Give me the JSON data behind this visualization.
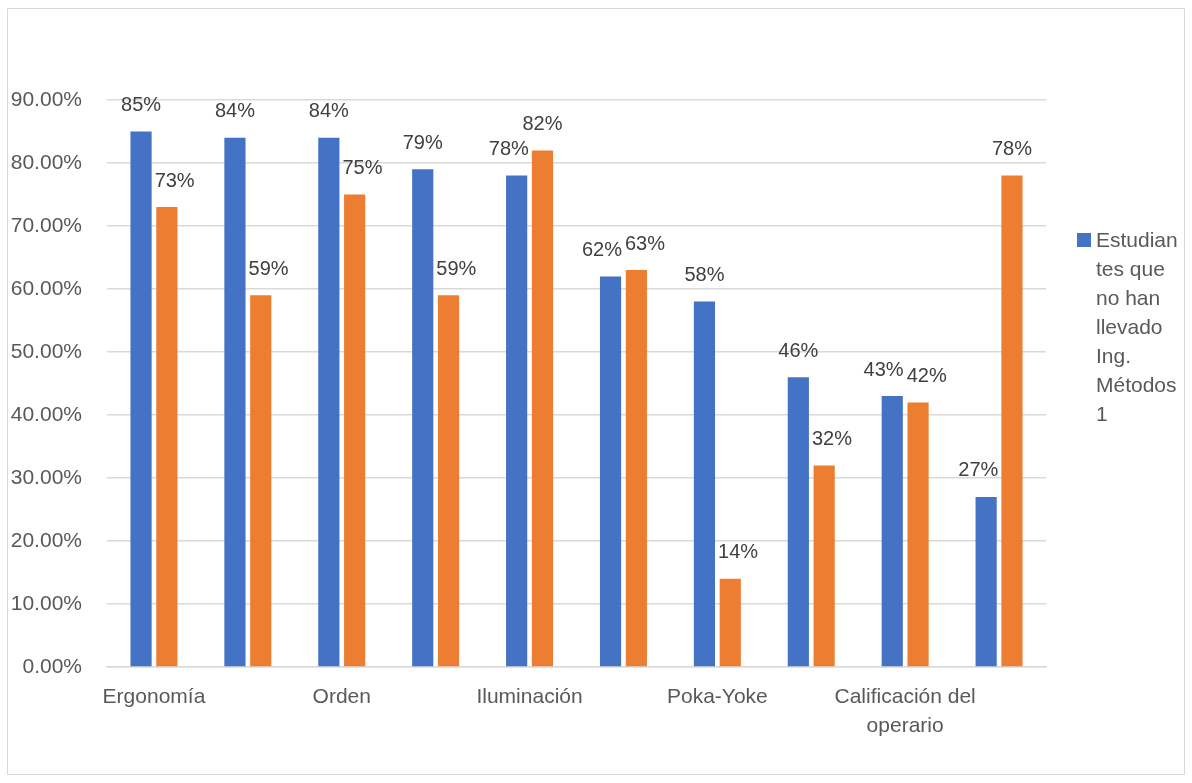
{
  "chart_data": {
    "type": "bar",
    "categories": [
      "Ergonomía",
      null,
      "Orden",
      null,
      "Iluminación",
      null,
      "Poka-Yoke",
      null,
      "Calificación del operario",
      null
    ],
    "series": [
      {
        "name": "Estudiantes que no han llevado Ing. Métodos 1",
        "color": "#4472c4",
        "values": [
          85,
          84,
          84,
          79,
          78,
          62,
          58,
          46,
          43,
          27
        ],
        "value_labels": [
          "85%",
          "84%",
          "84%",
          "79%",
          "78%",
          "62%",
          "58%",
          "46%",
          "43%",
          "27%"
        ]
      },
      {
        "color": "#ed7d31",
        "values": [
          73,
          59,
          75,
          59,
          82,
          63,
          14,
          32,
          42,
          78
        ],
        "value_labels": [
          "73%",
          "59%",
          "75%",
          "59%",
          "82%",
          "63%",
          "14%",
          "32%",
          "42%",
          "78%"
        ]
      }
    ],
    "ylim": [
      0,
      90
    ],
    "yticks": [
      {
        "value": 0,
        "label": "0.00%"
      },
      {
        "value": 10,
        "label": "10.00%"
      },
      {
        "value": 20,
        "label": "20.00%"
      },
      {
        "value": 30,
        "label": "30.00%"
      },
      {
        "value": 40,
        "label": "40.00%"
      },
      {
        "value": 50,
        "label": "50.00%"
      },
      {
        "value": 60,
        "label": "60.00%"
      },
      {
        "value": 70,
        "label": "70.00%"
      },
      {
        "value": 80,
        "label": "80.00%"
      },
      {
        "value": 90,
        "label": "90.00%"
      }
    ],
    "grid": "y",
    "legend": "right"
  }
}
